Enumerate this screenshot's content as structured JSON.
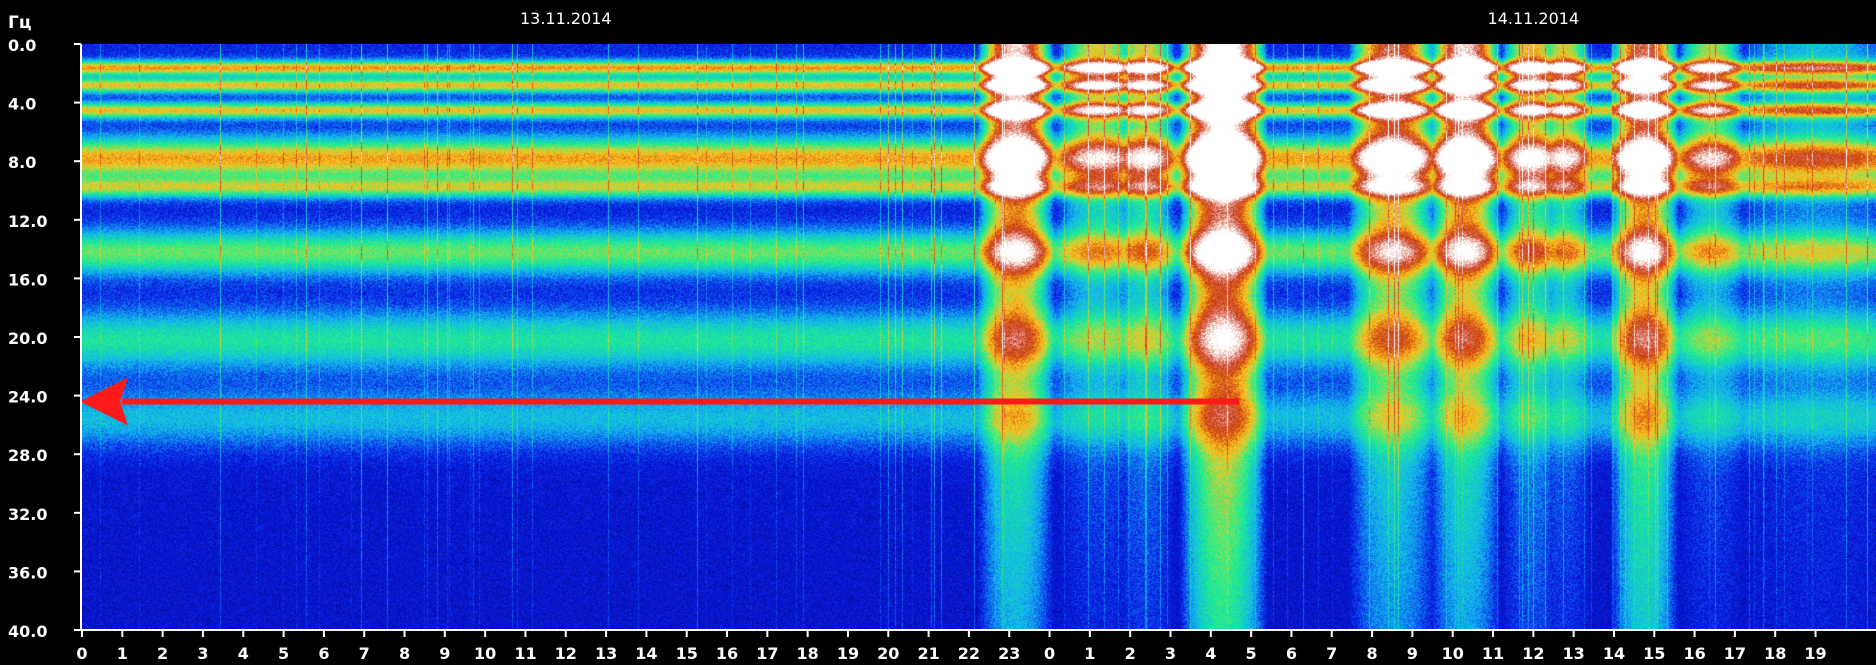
{
  "chart_data": {
    "type": "heatmap",
    "ylabel": "Гц",
    "y_ticks": [
      "0.0",
      "4.0",
      "8.0",
      "12.0",
      "16.0",
      "20.0",
      "24.0",
      "28.0",
      "32.0",
      "36.0",
      "40.0"
    ],
    "y_range": [
      0,
      40
    ],
    "x_ticks": [
      "0",
      "1",
      "2",
      "3",
      "4",
      "5",
      "6",
      "7",
      "8",
      "9",
      "10",
      "11",
      "12",
      "13",
      "14",
      "15",
      "16",
      "17",
      "18",
      "19",
      "20",
      "21",
      "22",
      "23",
      "0",
      "1",
      "2",
      "3",
      "4",
      "5",
      "6",
      "7",
      "8",
      "9",
      "10",
      "11",
      "12",
      "13",
      "14",
      "15",
      "16",
      "17",
      "18",
      "19"
    ],
    "x_range_hours": [
      0,
      44.5
    ],
    "dates": [
      {
        "label": "13.11.2014",
        "hour": 12
      },
      {
        "label": "14.11.2014",
        "hour": 36
      }
    ],
    "annotation": {
      "type": "arrow",
      "color": "#ff1a1a",
      "from_hour": 28.7,
      "to_hour": 0,
      "frequency": 24.4
    },
    "colorscale": [
      "#00007a",
      "#0a1ee6",
      "#12b4f0",
      "#1ef08c",
      "#ffc81e",
      "#c83214",
      "#ffffff"
    ],
    "bands": [
      {
        "f": 1.6,
        "w": 0.5,
        "s": 0.55
      },
      {
        "f": 2.8,
        "w": 0.5,
        "s": 0.5
      },
      {
        "f": 4.5,
        "w": 0.55,
        "s": 0.5
      },
      {
        "f": 7.8,
        "w": 1.4,
        "s": 0.55
      },
      {
        "f": 9.8,
        "w": 0.7,
        "s": 0.4
      },
      {
        "f": 14.2,
        "w": 1.5,
        "s": 0.4
      },
      {
        "f": 20.2,
        "w": 2.0,
        "s": 0.32
      },
      {
        "f": 25.5,
        "w": 2.0,
        "s": 0.22
      }
    ],
    "bursts": [
      {
        "h0": 22.6,
        "h1": 23.7,
        "amp": 0.85,
        "depth": 30
      },
      {
        "h0": 24.6,
        "h1": 25.8,
        "amp": 0.5,
        "depth": 16
      },
      {
        "h0": 26.0,
        "h1": 26.7,
        "amp": 0.5,
        "depth": 20
      },
      {
        "h0": 27.6,
        "h1": 29.0,
        "amp": 1.0,
        "depth": 40
      },
      {
        "h0": 31.8,
        "h1": 33.2,
        "amp": 0.75,
        "depth": 28
      },
      {
        "h0": 33.8,
        "h1": 34.8,
        "amp": 0.85,
        "depth": 28
      },
      {
        "h0": 35.6,
        "h1": 36.3,
        "amp": 0.55,
        "depth": 22
      },
      {
        "h0": 36.5,
        "h1": 37.0,
        "amp": 0.5,
        "depth": 18
      },
      {
        "h0": 38.3,
        "h1": 39.2,
        "amp": 0.75,
        "depth": 40
      },
      {
        "h0": 40.0,
        "h1": 40.8,
        "amp": 0.45,
        "depth": 16
      },
      {
        "h0": 41.5,
        "h1": 44.5,
        "amp": 0.2,
        "depth": 20
      }
    ]
  }
}
